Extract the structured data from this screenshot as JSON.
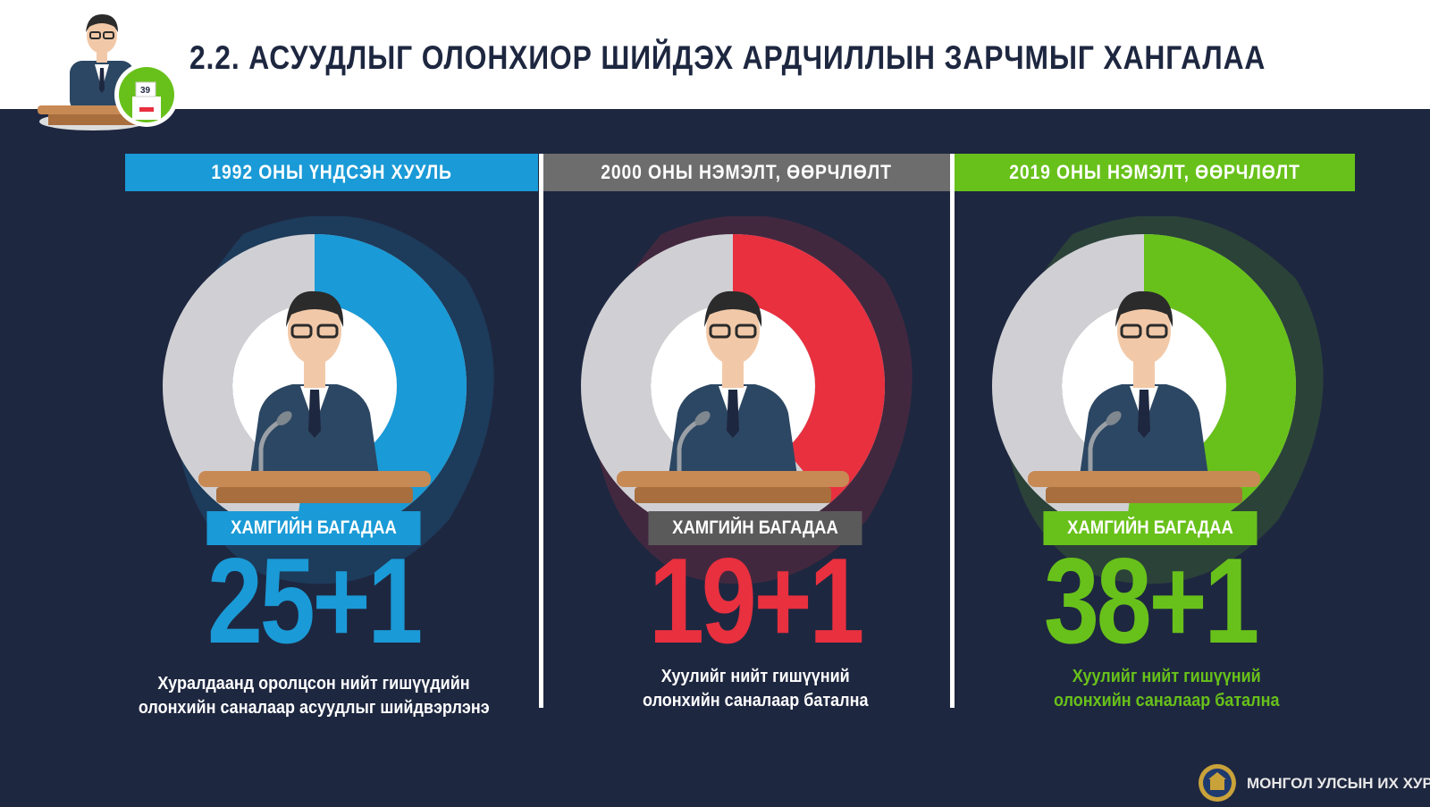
{
  "header": {
    "title": "2.2. АСУУДЛЫГ ОЛОНХИОР ШИЙДЭХ АРДЧИЛЛЫН ЗАРЧМЫГ ХАНГАЛАА",
    "logo_ballot_number": "39"
  },
  "colors": {
    "background": "#1e2740",
    "blue": "#1a9ad6",
    "gray": "#6d6d6d",
    "red": "#e8303f",
    "green": "#68c11a"
  },
  "panels": [
    {
      "header": "1992 ОНЫ ҮНДСЭН ХУУЛЬ",
      "header_color": "#1a9ad6",
      "badge": "ХАМГИЙН БАГАДАА",
      "badge_color": "#1a9ad6",
      "number": "25+1",
      "number_color": "#1a9ad6",
      "desc_line1": "Хуралдаанд оролцсон нийт гишүүдийн",
      "desc_line2": "олонхийн саналаар асуудлыг шийдвэрлэнэ",
      "desc_color": "#ffffff",
      "ring_color": "#1a9ad6",
      "ring_fraction": 0.52
    },
    {
      "header": "2000 ОНЫ НЭМЭЛТ, ӨӨРЧЛӨЛТ",
      "header_color": "#6d6d6d",
      "badge": "ХАМГИЙН БАГАДАА",
      "badge_color": "#5a5a5a",
      "number": "19+1",
      "number_color": "#e8303f",
      "desc_line1": "Хуулийг нийт гишүүний",
      "desc_line2": "олонхийн саналаар батална",
      "desc_color": "#ffffff",
      "ring_color": "#e8303f",
      "ring_fraction": 0.39
    },
    {
      "header": "2019 ОНЫ НЭМЭЛТ, ӨӨРЧЛӨЛТ",
      "header_color": "#68c11a",
      "badge": "ХАМГИЙН БАГАДАА",
      "badge_color": "#68c11a",
      "number": "38+1",
      "number_color": "#68c11a",
      "desc_line1": "Хуулийг нийт гишүүний",
      "desc_line2": "олонхийн саналаар батална",
      "desc_color": "#68c11a",
      "ring_color": "#68c11a",
      "ring_fraction": 0.52
    }
  ],
  "footer": {
    "organization": "МОНГОЛ УЛСЫН ИХ ХУРАЛ"
  }
}
